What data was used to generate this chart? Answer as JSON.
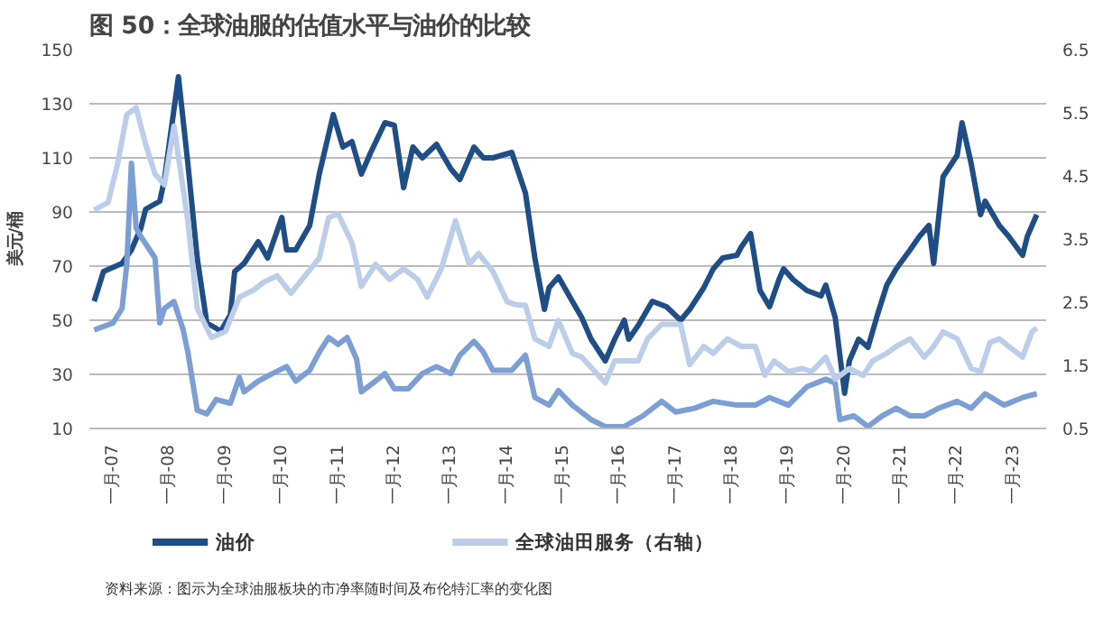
{
  "chart_data": {
    "type": "line",
    "title": "图 50：全球油服的估值水平与油价的比较",
    "ylabel": "美元/桶",
    "annotations": [
      "资料来源：图示为全球油服板块的市净率随时间及布伦特汇率的变化图"
    ],
    "xlim": [
      "2006-08",
      "2023-08"
    ],
    "xticks": [
      {
        "value": "2007-01",
        "label": "一月-07"
      },
      {
        "value": "2008-01",
        "label": "一月-08"
      },
      {
        "value": "2009-01",
        "label": "一月-09"
      },
      {
        "value": "2010-01",
        "label": "一月-10"
      },
      {
        "value": "2011-01",
        "label": "一月-11"
      },
      {
        "value": "2012-01",
        "label": "一月-12"
      },
      {
        "value": "2013-01",
        "label": "一月-13"
      },
      {
        "value": "2014-01",
        "label": "一月-14"
      },
      {
        "value": "2015-01",
        "label": "一月-15"
      },
      {
        "value": "2016-01",
        "label": "一月-16"
      },
      {
        "value": "2017-01",
        "label": "一月-17"
      },
      {
        "value": "2018-01",
        "label": "一月-18"
      },
      {
        "value": "2019-01",
        "label": "一月-19"
      },
      {
        "value": "2020-01",
        "label": "一月-20"
      },
      {
        "value": "2021-01",
        "label": "一月-21"
      },
      {
        "value": "2022-01",
        "label": "一月-22"
      },
      {
        "value": "2023-01",
        "label": "一月-23"
      }
    ],
    "ylim": [
      10,
      150
    ],
    "yticks": [
      10,
      30,
      50,
      70,
      90,
      110,
      130,
      150
    ],
    "y2lim": [
      0.5,
      6.5
    ],
    "y2ticks": [
      0.5,
      1.5,
      2.5,
      3.5,
      4.5,
      5.5,
      6.5
    ],
    "grid": "y",
    "legend": "bottom",
    "line_style": "solid",
    "series": [
      {
        "name": "油价",
        "color": "#1f4e87",
        "x": [
          "2006-09",
          "2006-11",
          "2007-03",
          "2007-05",
          "2007-07",
          "2007-08",
          "2007-11",
          "2007-12",
          "2008-03",
          "2008-05",
          "2008-07",
          "2008-09",
          "2008-12",
          "2009-02",
          "2009-03",
          "2009-05",
          "2009-08",
          "2009-10",
          "2010-01",
          "2010-02",
          "2010-04",
          "2010-07",
          "2010-09",
          "2010-12",
          "2011-02",
          "2011-04",
          "2011-06",
          "2011-08",
          "2011-11",
          "2012-01",
          "2012-03",
          "2012-05",
          "2012-07",
          "2012-10",
          "2013-01",
          "2013-03",
          "2013-06",
          "2013-08",
          "2013-10",
          "2014-02",
          "2014-05",
          "2014-07",
          "2014-09",
          "2014-10",
          "2014-12",
          "2015-03",
          "2015-05",
          "2015-07",
          "2015-10",
          "2015-12",
          "2016-02",
          "2016-03",
          "2016-05",
          "2016-08",
          "2016-11",
          "2017-02",
          "2017-04",
          "2017-07",
          "2017-09",
          "2017-11",
          "2018-02",
          "2018-03",
          "2018-05",
          "2018-07",
          "2018-09",
          "2018-11",
          "2018-12",
          "2019-02",
          "2019-05",
          "2019-08",
          "2019-09",
          "2019-11",
          "2020-01",
          "2020-02",
          "2020-04",
          "2020-06",
          "2020-08",
          "2020-10",
          "2020-12",
          "2021-03",
          "2021-05",
          "2021-07",
          "2021-08",
          "2021-10",
          "2022-01",
          "2022-02",
          "2022-04",
          "2022-06",
          "2022-07",
          "2022-10",
          "2022-12",
          "2023-03",
          "2023-04",
          "2023-06"
        ],
        "values": [
          57,
          68,
          71,
          76,
          84,
          91,
          94,
          102,
          140,
          108,
          73,
          49,
          46,
          52,
          68,
          71,
          79,
          73,
          88,
          76,
          76,
          85,
          104,
          126,
          114,
          116,
          104,
          112,
          123,
          122,
          99,
          114,
          110,
          115,
          106,
          102,
          114,
          110,
          110,
          112,
          97,
          73,
          54,
          62,
          66,
          57,
          51,
          43,
          35,
          43,
          50,
          43,
          48,
          57,
          55,
          50,
          54,
          62,
          69,
          73,
          74,
          77,
          82,
          61,
          55,
          65,
          69,
          65,
          61,
          59,
          63,
          51,
          23,
          35,
          43,
          40,
          52,
          63,
          69,
          76,
          81,
          85,
          71,
          103,
          111,
          123,
          108,
          89,
          94,
          85,
          81,
          74,
          81,
          89
        ]
      },
      {
        "axis": "y2",
        "color": "#7b9fd4",
        "x": [
          "2006-09",
          "2007-01",
          "2007-03",
          "2007-04",
          "2007-05",
          "2007-06",
          "2007-07",
          "2007-10",
          "2007-11",
          "2007-12",
          "2008-02",
          "2008-04",
          "2008-05",
          "2008-07",
          "2008-09",
          "2008-11",
          "2009-02",
          "2009-04",
          "2009-05",
          "2009-08",
          "2009-11",
          "2010-02",
          "2010-04",
          "2010-07",
          "2010-09",
          "2010-11",
          "2011-01",
          "2011-03",
          "2011-05",
          "2011-06",
          "2011-09",
          "2011-11",
          "2012-01",
          "2012-04",
          "2012-07",
          "2012-10",
          "2013-01",
          "2013-03",
          "2013-06",
          "2013-08",
          "2013-10",
          "2014-02",
          "2014-05",
          "2014-07",
          "2014-10",
          "2014-12",
          "2015-03",
          "2015-07",
          "2015-10",
          "2016-02",
          "2016-06",
          "2016-10",
          "2017-01",
          "2017-05",
          "2017-09",
          "2018-02",
          "2018-06",
          "2018-09",
          "2019-01",
          "2019-05",
          "2019-09",
          "2019-11",
          "2019-12",
          "2020-03",
          "2020-06",
          "2020-09",
          "2020-12",
          "2021-03",
          "2021-06",
          "2021-09",
          "2022-01",
          "2022-04",
          "2022-07",
          "2022-11",
          "2023-03",
          "2023-06"
        ],
        "values": [
          2.06,
          2.17,
          2.4,
          3.1,
          4.7,
          3.67,
          3.54,
          3.2,
          2.17,
          2.4,
          2.51,
          2.06,
          1.71,
          0.79,
          0.73,
          0.96,
          0.9,
          1.31,
          1.08,
          1.25,
          1.37,
          1.48,
          1.25,
          1.42,
          1.71,
          1.94,
          1.83,
          1.94,
          1.6,
          1.08,
          1.25,
          1.37,
          1.13,
          1.13,
          1.37,
          1.48,
          1.37,
          1.66,
          1.88,
          1.71,
          1.42,
          1.42,
          1.66,
          0.99,
          0.87,
          1.1,
          0.87,
          0.64,
          0.53,
          0.53,
          0.7,
          0.93,
          0.76,
          0.82,
          0.93,
          0.87,
          0.87,
          0.99,
          0.87,
          1.16,
          1.28,
          1.22,
          0.64,
          0.7,
          0.53,
          0.7,
          0.82,
          0.7,
          0.7,
          0.82,
          0.93,
          0.82,
          1.05,
          0.87,
          0.99,
          1.05
        ]
      },
      {
        "name": "全球油田服务（右轴）",
        "axis": "y2",
        "color": "#bccde9",
        "x": [
          "2006-09",
          "2006-12",
          "2007-02",
          "2007-04",
          "2007-06",
          "2007-08",
          "2007-10",
          "2007-12",
          "2008-02",
          "2008-05",
          "2008-07",
          "2008-10",
          "2009-01",
          "2009-04",
          "2009-07",
          "2009-09",
          "2009-12",
          "2010-03",
          "2010-06",
          "2010-09",
          "2010-11",
          "2011-01",
          "2011-04",
          "2011-06",
          "2011-09",
          "2011-12",
          "2012-03",
          "2012-06",
          "2012-08",
          "2012-11",
          "2013-02",
          "2013-05",
          "2013-07",
          "2013-10",
          "2014-01",
          "2014-03",
          "2014-05",
          "2014-07",
          "2014-10",
          "2014-12",
          "2015-03",
          "2015-05",
          "2015-10",
          "2015-12",
          "2016-05",
          "2016-07",
          "2016-10",
          "2017-02",
          "2017-04",
          "2017-07",
          "2017-09",
          "2017-12",
          "2018-03",
          "2018-06",
          "2018-08",
          "2018-10",
          "2019-01",
          "2019-04",
          "2019-06",
          "2019-09",
          "2019-11",
          "2020-02",
          "2020-05",
          "2020-07",
          "2020-10",
          "2020-12",
          "2021-03",
          "2021-06",
          "2021-08",
          "2021-10",
          "2022-01",
          "2022-04",
          "2022-06",
          "2022-08",
          "2022-10",
          "2022-12",
          "2023-03",
          "2023-05",
          "2023-06"
        ],
        "values": [
          3.96,
          4.08,
          4.7,
          5.47,
          5.58,
          5.0,
          4.53,
          4.36,
          5.29,
          3.79,
          2.4,
          1.94,
          2.04,
          2.58,
          2.69,
          2.81,
          2.92,
          2.64,
          2.92,
          3.2,
          3.84,
          3.9,
          3.44,
          2.75,
          3.1,
          2.86,
          3.03,
          2.86,
          2.58,
          3.03,
          3.79,
          3.1,
          3.27,
          2.99,
          2.51,
          2.46,
          2.45,
          1.92,
          1.8,
          2.21,
          1.69,
          1.63,
          1.22,
          1.57,
          1.57,
          1.92,
          2.15,
          2.15,
          1.51,
          1.8,
          1.69,
          1.92,
          1.8,
          1.8,
          1.34,
          1.57,
          1.4,
          1.45,
          1.4,
          1.63,
          1.28,
          1.45,
          1.34,
          1.57,
          1.69,
          1.8,
          1.92,
          1.63,
          1.8,
          2.03,
          1.92,
          1.45,
          1.4,
          1.86,
          1.92,
          1.8,
          1.63,
          2.03,
          2.09
        ]
      }
    ]
  }
}
